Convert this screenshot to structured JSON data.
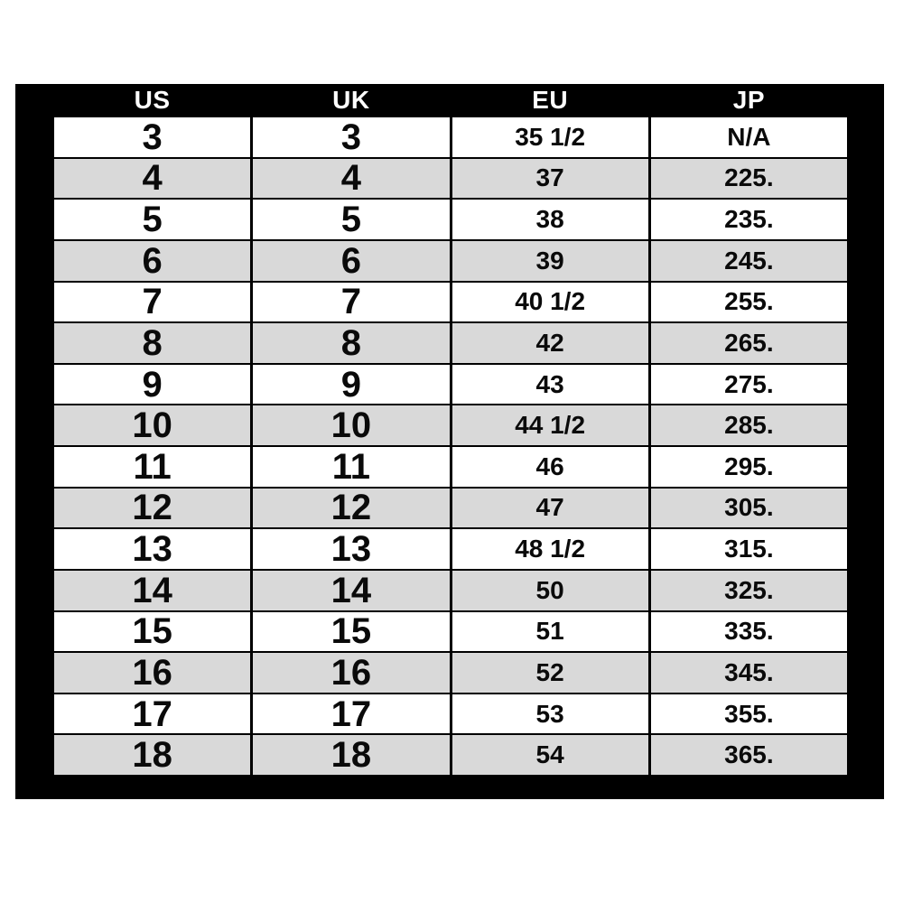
{
  "colors": {
    "frame": "#000000",
    "header_text": "#ffffff",
    "row_bg": "#ffffff",
    "row_alt_bg": "#d9d9d9",
    "cell_text": "#0a0a0a"
  },
  "chart_data": {
    "type": "table",
    "columns": [
      "US",
      "UK",
      "EU",
      "JP"
    ],
    "rows": [
      [
        "3",
        "3",
        "35 1/2",
        "N/A"
      ],
      [
        "4",
        "4",
        "37",
        "225."
      ],
      [
        "5",
        "5",
        "38",
        "235."
      ],
      [
        "6",
        "6",
        "39",
        "245."
      ],
      [
        "7",
        "7",
        "40 1/2",
        "255."
      ],
      [
        "8",
        "8",
        "42",
        "265."
      ],
      [
        "9",
        "9",
        "43",
        "275."
      ],
      [
        "10",
        "10",
        "44 1/2",
        "285."
      ],
      [
        "11",
        "11",
        "46",
        "295."
      ],
      [
        "12",
        "12",
        "47",
        "305."
      ],
      [
        "13",
        "13",
        "48 1/2",
        "315."
      ],
      [
        "14",
        "14",
        "50",
        "325."
      ],
      [
        "15",
        "15",
        "51",
        "335."
      ],
      [
        "16",
        "16",
        "52",
        "345."
      ],
      [
        "17",
        "17",
        "53",
        "355."
      ],
      [
        "18",
        "18",
        "54",
        "365."
      ]
    ]
  }
}
